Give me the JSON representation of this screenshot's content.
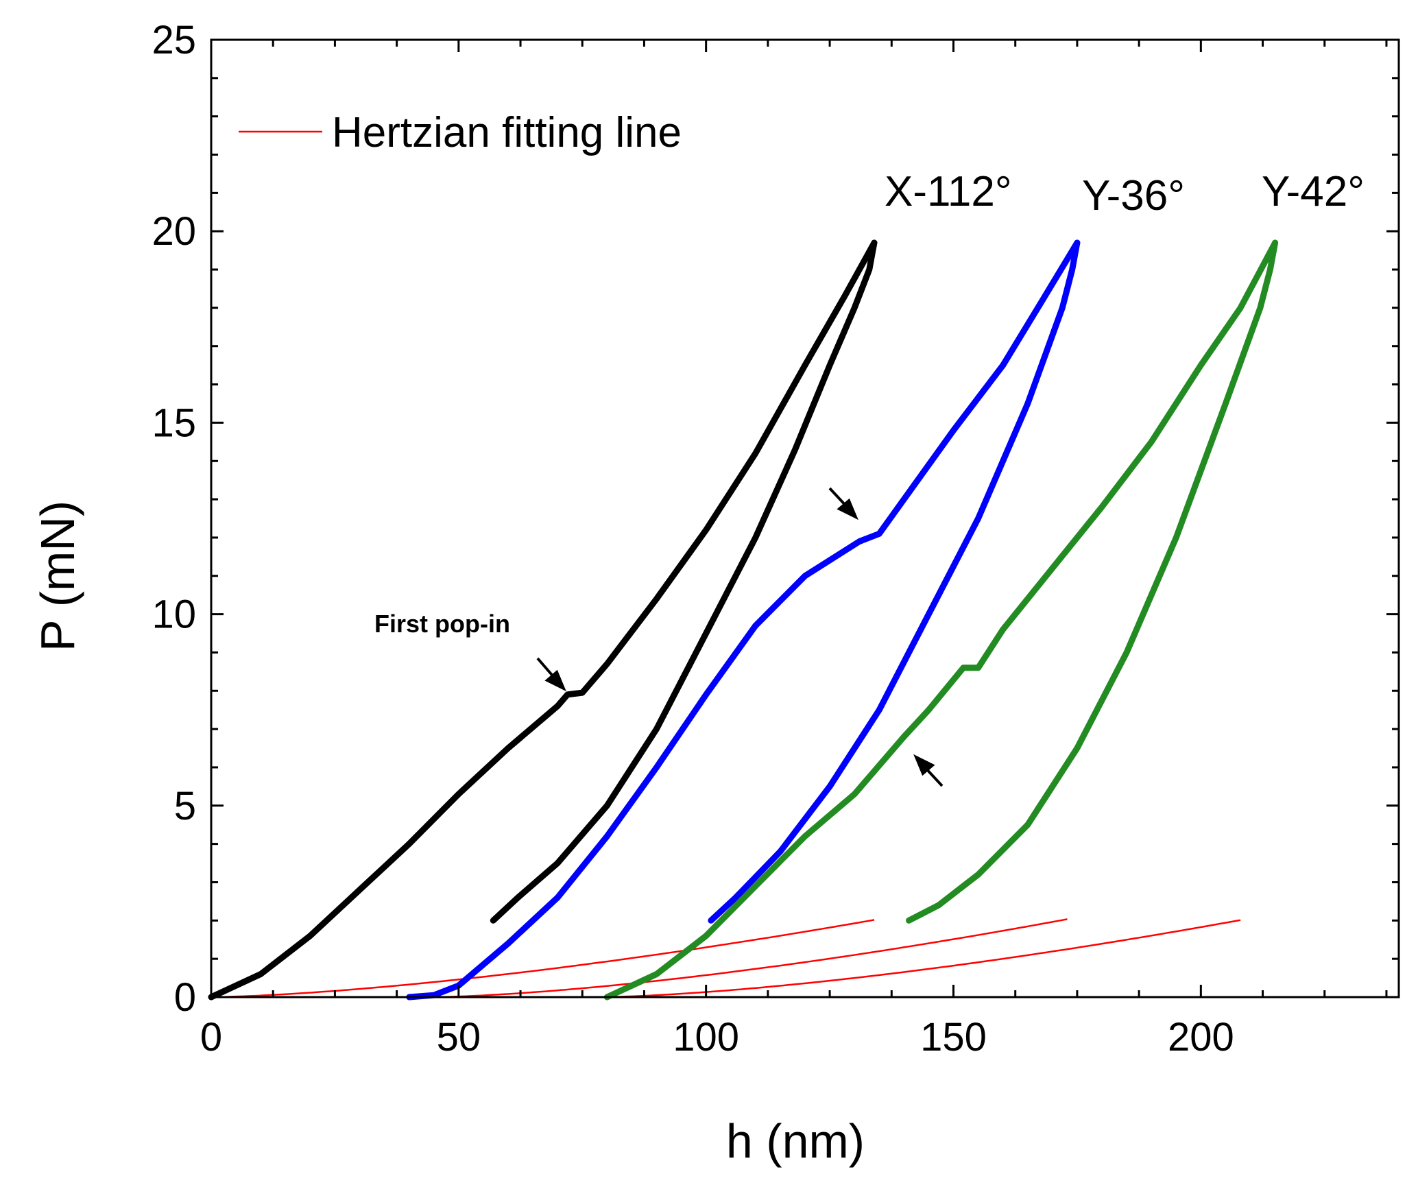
{
  "chart_data": {
    "type": "line",
    "title": "",
    "xlabel": "h (nm)",
    "ylabel": "P (mN)",
    "xlim": [
      0,
      240
    ],
    "ylim": [
      0,
      25
    ],
    "x_ticks": [
      0,
      50,
      100,
      150,
      200
    ],
    "x_tick_labels": [
      "0",
      "50",
      "100",
      "150",
      "200"
    ],
    "y_ticks": [
      0,
      5,
      10,
      15,
      20,
      25
    ],
    "y_tick_labels": [
      "0",
      "5",
      "10",
      "15",
      "20",
      "25"
    ],
    "grid": false,
    "legend": {
      "position": "top-left",
      "entries": [
        {
          "label": "Hertzian fitting line",
          "color": "#ff0000"
        }
      ]
    },
    "series": [
      {
        "name": "X-112°",
        "color": "#000000",
        "loading": [
          [
            0,
            0
          ],
          [
            10,
            0.6
          ],
          [
            20,
            1.6
          ],
          [
            30,
            2.8
          ],
          [
            40,
            4.0
          ],
          [
            50,
            5.3
          ],
          [
            60,
            6.5
          ],
          [
            70,
            7.6
          ],
          [
            72,
            7.9
          ],
          [
            75,
            7.95
          ],
          [
            80,
            8.7
          ],
          [
            90,
            10.4
          ],
          [
            100,
            12.2
          ],
          [
            110,
            14.2
          ],
          [
            120,
            16.5
          ],
          [
            128,
            18.3
          ],
          [
            134,
            19.7
          ]
        ],
        "unloading": [
          [
            134,
            19.7
          ],
          [
            133,
            19.0
          ],
          [
            130,
            18.0
          ],
          [
            125,
            16.5
          ],
          [
            118,
            14.3
          ],
          [
            110,
            12.0
          ],
          [
            100,
            9.5
          ],
          [
            90,
            7.0
          ],
          [
            80,
            5.0
          ],
          [
            70,
            3.5
          ],
          [
            62,
            2.6
          ],
          [
            57,
            2.0
          ]
        ],
        "hertz_fit": {
          "h0": 0,
          "h_end": 134,
          "k": 0.0013
        }
      },
      {
        "name": "Y-36°",
        "color": "#0000ff",
        "loading": [
          [
            40,
            0
          ],
          [
            45,
            0.05
          ],
          [
            50,
            0.3
          ],
          [
            60,
            1.4
          ],
          [
            70,
            2.6
          ],
          [
            80,
            4.2
          ],
          [
            90,
            6.0
          ],
          [
            100,
            7.9
          ],
          [
            110,
            9.7
          ],
          [
            120,
            11.0
          ],
          [
            131,
            11.9
          ],
          [
            135,
            12.1
          ],
          [
            140,
            13.0
          ],
          [
            150,
            14.8
          ],
          [
            160,
            16.5
          ],
          [
            168,
            18.2
          ],
          [
            175,
            19.7
          ]
        ],
        "unloading": [
          [
            175,
            19.7
          ],
          [
            174,
            19.0
          ],
          [
            172,
            18.0
          ],
          [
            165,
            15.5
          ],
          [
            155,
            12.5
          ],
          [
            145,
            10.0
          ],
          [
            135,
            7.5
          ],
          [
            125,
            5.5
          ],
          [
            115,
            3.8
          ],
          [
            106,
            2.6
          ],
          [
            101,
            2.0
          ]
        ],
        "hertz_fit": {
          "h0": 45,
          "h_end": 173,
          "k": 0.001405
        }
      },
      {
        "name": "Y-42°",
        "color": "#228b22",
        "loading": [
          [
            80,
            0
          ],
          [
            90,
            0.6
          ],
          [
            100,
            1.6
          ],
          [
            110,
            2.9
          ],
          [
            120,
            4.2
          ],
          [
            130,
            5.3
          ],
          [
            140,
            6.8
          ],
          [
            145,
            7.5
          ],
          [
            152,
            8.6
          ],
          [
            155,
            8.6
          ],
          [
            160,
            9.6
          ],
          [
            170,
            11.2
          ],
          [
            180,
            12.8
          ],
          [
            190,
            14.5
          ],
          [
            200,
            16.5
          ],
          [
            208,
            18.0
          ],
          [
            215,
            19.7
          ]
        ],
        "unloading": [
          [
            215,
            19.7
          ],
          [
            214,
            19.0
          ],
          [
            212,
            18.0
          ],
          [
            205,
            15.5
          ],
          [
            195,
            12.0
          ],
          [
            185,
            9.0
          ],
          [
            175,
            6.5
          ],
          [
            165,
            4.5
          ],
          [
            155,
            3.2
          ],
          [
            147,
            2.4
          ],
          [
            141,
            2.0
          ]
        ],
        "hertz_fit": {
          "h0": 79,
          "h_end": 208,
          "k": 0.001373
        }
      }
    ],
    "series_labels": [
      "X-112°",
      "Y-36°",
      "Y-42°"
    ],
    "annotations": [
      {
        "text": "First pop-in"
      }
    ]
  }
}
